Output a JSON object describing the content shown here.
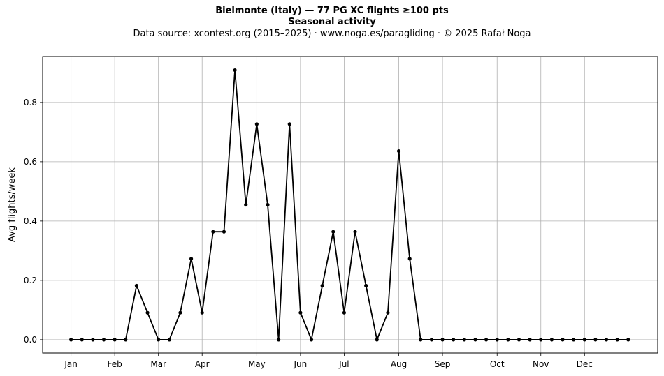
{
  "titles": {
    "line1": "Bielmonte (Italy)  —  77 PG XC flights ≥100 pts",
    "line2": "Seasonal activity",
    "line3": "Data source: xcontest.org (2015–2025)  ·  www.noga.es/paragliding  ·  © 2025 Rafał Noga"
  },
  "chart_data": {
    "type": "line",
    "title": "Bielmonte (Italy)  —  77 PG XC flights ≥100 pts",
    "subtitle": "Seasonal activity",
    "xlabel": "",
    "ylabel": "Avg flights/week",
    "x_ticks": [
      {
        "label": "Jan",
        "week": 1
      },
      {
        "label": "Feb",
        "week": 5
      },
      {
        "label": "Mar",
        "week": 9
      },
      {
        "label": "Apr",
        "week": 13
      },
      {
        "label": "May",
        "week": 18
      },
      {
        "label": "Jun",
        "week": 22
      },
      {
        "label": "Jul",
        "week": 26
      },
      {
        "label": "Aug",
        "week": 31
      },
      {
        "label": "Sep",
        "week": 35
      },
      {
        "label": "Oct",
        "week": 40
      },
      {
        "label": "Nov",
        "week": 44
      },
      {
        "label": "Dec",
        "week": 48
      }
    ],
    "y_ticks": [
      0.0,
      0.2,
      0.4,
      0.6,
      0.8
    ],
    "xlim": [
      -1.6,
      54.7
    ],
    "ylim": [
      -0.045,
      0.955
    ],
    "grid": true,
    "series": [
      {
        "color": "#000000",
        "x": [
          1,
          2,
          3,
          4,
          5,
          6,
          7,
          8,
          9,
          10,
          11,
          12,
          13,
          14,
          15,
          16,
          17,
          18,
          19,
          20,
          21,
          22,
          23,
          24,
          25,
          26,
          27,
          28,
          29,
          30,
          31,
          32,
          33,
          34,
          35,
          36,
          37,
          38,
          39,
          40,
          41,
          42,
          43,
          44,
          45,
          46,
          47,
          48,
          49,
          50,
          51,
          52
        ],
        "values": [
          0,
          0,
          0,
          0,
          0,
          0,
          0.182,
          0.091,
          0,
          0,
          0.091,
          0.273,
          0.091,
          0.364,
          0.364,
          0.909,
          0.455,
          0.727,
          0.455,
          0,
          0.727,
          0.091,
          0,
          0.182,
          0.364,
          0.091,
          0.364,
          0.182,
          0,
          0.091,
          0.636,
          0.273,
          0,
          0,
          0,
          0,
          0,
          0,
          0,
          0,
          0,
          0,
          0,
          0,
          0,
          0,
          0,
          0,
          0,
          0,
          0,
          0
        ]
      }
    ]
  }
}
